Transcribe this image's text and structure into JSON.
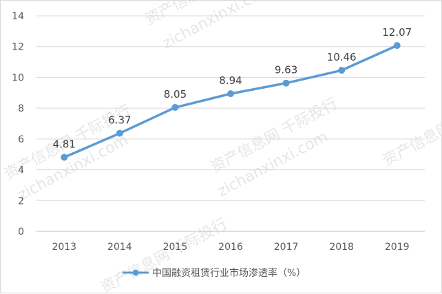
{
  "chart_data": {
    "type": "line",
    "categories": [
      "2013",
      "2014",
      "2015",
      "2016",
      "2017",
      "2018",
      "2019"
    ],
    "series": [
      {
        "name": "中国融资租赁行业市场渗透率（%）",
        "values": [
          4.81,
          6.37,
          8.05,
          8.94,
          9.63,
          10.46,
          12.07
        ],
        "color": "#5b9bd5"
      }
    ],
    "ylim": [
      0,
      14
    ],
    "yticks": [
      0,
      2,
      4,
      6,
      8,
      10,
      12,
      14
    ],
    "grid": "horizontal",
    "legend_position": "bottom"
  },
  "watermarks": [
    "资产信息网 千际投行",
    "zichanxinxi.com"
  ]
}
